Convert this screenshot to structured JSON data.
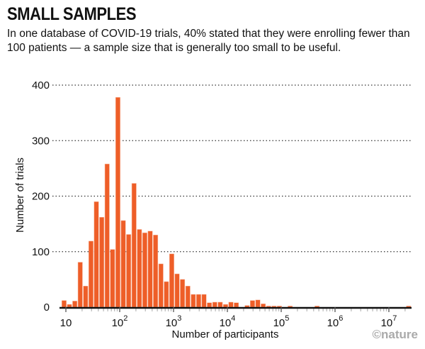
{
  "title": "SMALL SAMPLES",
  "subtitle": "In one database of COVID-19 trials, 40% stated that they were enrolling fewer than 100 patients — a sample size that is generally too small to be useful.",
  "credit": "©nature",
  "colors": {
    "bar": "#ee5e28",
    "axis": "#111111",
    "grid": "#333333"
  },
  "chart_data": {
    "type": "bar",
    "title": "SMALL SAMPLES",
    "xlabel": "Number of participants",
    "ylabel": "Number of trials",
    "x_scale": "log",
    "bin_start_participants": 8.3,
    "bins_per_decade": 10,
    "xlim": [
      7.2,
      25000000
    ],
    "ylim": [
      0,
      400
    ],
    "yticks": [
      0,
      100,
      200,
      300,
      400
    ],
    "xticks": [
      {
        "base": "10",
        "exp": ""
      },
      {
        "base": "10",
        "exp": "2"
      },
      {
        "base": "10",
        "exp": "3"
      },
      {
        "base": "10",
        "exp": "4"
      },
      {
        "base": "10",
        "exp": "5"
      },
      {
        "base": "10",
        "exp": "6"
      },
      {
        "base": "10",
        "exp": "7"
      }
    ],
    "grid": "horizontal dotted",
    "values": [
      12,
      5,
      11,
      81,
      38,
      119,
      190,
      162,
      258,
      104,
      378,
      156,
      131,
      223,
      140,
      134,
      137,
      130,
      78,
      46,
      96,
      60,
      50,
      38,
      23,
      23,
      23,
      8,
      9,
      9,
      5,
      9,
      8,
      0,
      3,
      12,
      13,
      6,
      2,
      2,
      2,
      0,
      2,
      0,
      0,
      0,
      0,
      2,
      0,
      0,
      0,
      0,
      0,
      0,
      0,
      0,
      0,
      0,
      0,
      0,
      0,
      0,
      0,
      0,
      2
    ]
  }
}
